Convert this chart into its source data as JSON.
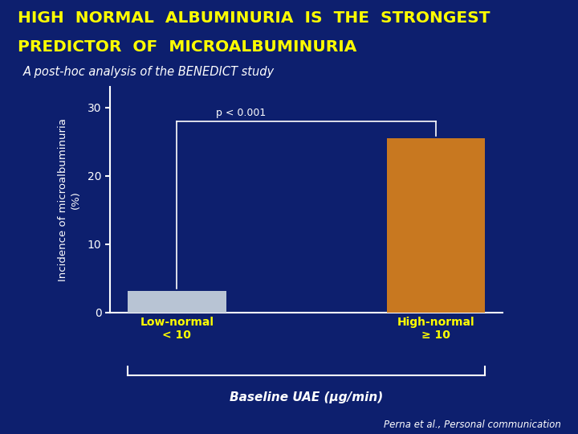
{
  "bg_color": "#0d1f6e",
  "title_line1": "HIGH  NORMAL  ALBUMINURIA  IS  THE  STRONGEST",
  "title_line2": "PREDICTOR  OF  MICROALBUMINURIA",
  "title_color": "#ffff00",
  "title_fontsize": 14.5,
  "subtitle": "A post-hoc analysis of the BENEDICT study",
  "subtitle_color": "#ffffff",
  "subtitle_fontsize": 10.5,
  "categories": [
    "Low-normal\n< 10",
    "High-normal\n≥ 10"
  ],
  "values": [
    3.2,
    25.5
  ],
  "bar_colors": [
    "#b8c4d4",
    "#c87820"
  ],
  "ylabel_line1": "Incidence of microalbuminuria",
  "ylabel_line2": "(%)",
  "ylabel_color": "#ffffff",
  "ylabel_fontsize": 9.5,
  "xlabel": "Baseline UAE (μg/min)",
  "xlabel_color": "#ffffff",
  "xlabel_fontsize": 11,
  "tick_color": "#ffff00",
  "tick_fontsize": 10,
  "ytick_color": "#ffffff",
  "ytick_fontsize": 10,
  "yticks": [
    0,
    10,
    20,
    30
  ],
  "ylim": [
    0,
    33
  ],
  "pvalue_text": "p < 0.001",
  "pvalue_color": "#ffffff",
  "pvalue_fontsize": 9,
  "footnote": "Perna et al., Personal communication",
  "footnote_color": "#ffffff",
  "footnote_fontsize": 8.5,
  "axis_color": "#ffffff",
  "bar_width": 0.38
}
